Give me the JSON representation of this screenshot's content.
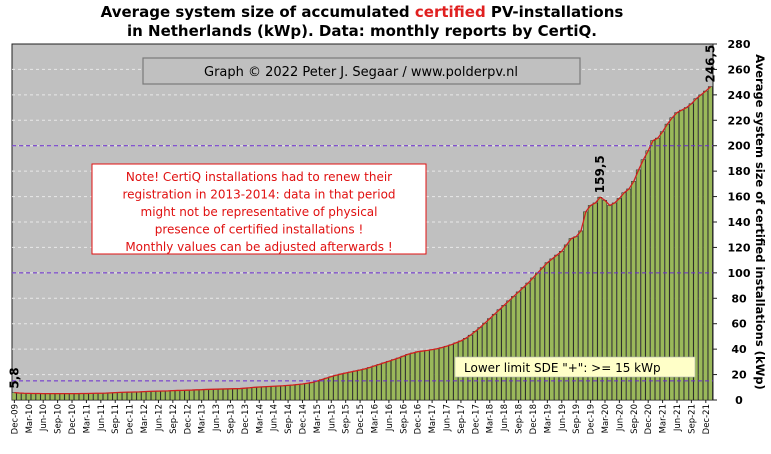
{
  "chart_data": {
    "type": "bar",
    "title_line1_pre": "Average system size of accumulated ",
    "title_line1_accent": "certified",
    "title_line1_post": " PV-installations",
    "title_line2": "in Netherlands (kWp). Data: monthly reports by CertiQ.",
    "ylabel": "Average system size of certified installations (kWp)",
    "ylim": [
      0,
      280
    ],
    "yticks": [
      0,
      20,
      40,
      60,
      80,
      100,
      120,
      140,
      160,
      180,
      200,
      220,
      240,
      260,
      280
    ],
    "reference_lines": [
      15,
      100,
      200
    ],
    "grid": true,
    "xtick_labels": [
      "Dec-09",
      "Mar-10",
      "Jun-10",
      "Sep-10",
      "Dec-10",
      "Mar-11",
      "Jun-11",
      "Sep-11",
      "Dec-11",
      "Mar-12",
      "Jun-12",
      "Sep-12",
      "Dec-12",
      "Mar-13",
      "Jun-13",
      "Sep-13",
      "Dec-13",
      "Mar-14",
      "Jun-14",
      "Sep-14",
      "Dec-14",
      "Mar-15",
      "Jun-15",
      "Sep-15",
      "Dec-15",
      "Mar-16",
      "Jun-16",
      "Sep-16",
      "Dec-16",
      "Mar-17",
      "Jun-17",
      "Sep-17",
      "Dec-17",
      "Mar-18",
      "Jun-18",
      "Sep-18",
      "Dec-18",
      "Mar-19",
      "Jun-19",
      "Sep-19",
      "Dec-19",
      "Mar-20",
      "Jun-20",
      "Sep-20",
      "Dec-20",
      "Mar-21",
      "Jun-21",
      "Sep-21",
      "Dec-21"
    ],
    "values": [
      5.8,
      5.5,
      5.3,
      5.2,
      5.1,
      5.1,
      5.0,
      5.0,
      5.0,
      5.0,
      5.0,
      5.0,
      5.0,
      5.0,
      5.1,
      5.1,
      5.2,
      5.3,
      5.3,
      5.4,
      5.6,
      5.8,
      6.0,
      6.1,
      6.2,
      6.3,
      6.4,
      6.6,
      6.8,
      6.9,
      7.0,
      7.1,
      7.2,
      7.4,
      7.5,
      7.6,
      7.7,
      7.8,
      8.0,
      8.1,
      8.3,
      8.4,
      8.5,
      8.6,
      8.7,
      8.8,
      8.9,
      9.0,
      9.3,
      9.6,
      10.0,
      10.2,
      10.4,
      10.6,
      10.8,
      11.0,
      11.2,
      11.5,
      11.8,
      12.2,
      12.6,
      13.2,
      13.8,
      14.8,
      16.0,
      17.2,
      18.4,
      19.5,
      20.4,
      21.2,
      22.0,
      22.8,
      23.6,
      24.5,
      25.6,
      26.8,
      28.0,
      29.3,
      30.5,
      31.8,
      33.0,
      34.5,
      36.0,
      37.0,
      38.0,
      38.5,
      39.0,
      39.6,
      40.3,
      41.2,
      42.3,
      43.5,
      45.0,
      46.5,
      48.5,
      51.0,
      54.0,
      57.0,
      60.5,
      64.0,
      67.5,
      71.0,
      74.5,
      78.0,
      81.5,
      85.0,
      88.5,
      92.0,
      96.0,
      100.0,
      104.0,
      108.0,
      111.0,
      114.0,
      117.0,
      122.0,
      127.0,
      128.5,
      133.0,
      148.0,
      153.0,
      155.0,
      159.5,
      157.0,
      153.0,
      155.0,
      158.5,
      163.0,
      166.0,
      172.0,
      181.0,
      189.0,
      196.0,
      204.0,
      206.0,
      211.0,
      217.0,
      222.0,
      226.0,
      228.0,
      230.0,
      233.0,
      237.0,
      240.0,
      243.0,
      246.5
    ],
    "annotations": [
      {
        "text": "5,8",
        "index": 0,
        "value": 5.8
      },
      {
        "text": "159,5",
        "index": 122,
        "value": 159.5
      },
      {
        "text": "246,5",
        "index": 145,
        "value": 246.5
      }
    ],
    "credit": "Graph © 2022 Peter J. Segaar / www.polderpv.nl",
    "note_lines": [
      "Note! CertiQ installations had to renew their",
      "registration in 2013-2014:  data in that period",
      "might not be representative of physical",
      "presence of certified installations  !",
      "Monthly values can be adjusted afterwards !"
    ],
    "lower_limit_label": "Lower limit  SDE \"+\":    >=  15 kWp",
    "colors": {
      "plot_background": "#c0c0c0",
      "bar_fill": "#9ab85a",
      "bar_edge": "#202020",
      "trend_line": "#d02020",
      "reference_line": "#6a2bd0",
      "title_accent": "#e02020",
      "note_text": "#e01010"
    }
  }
}
